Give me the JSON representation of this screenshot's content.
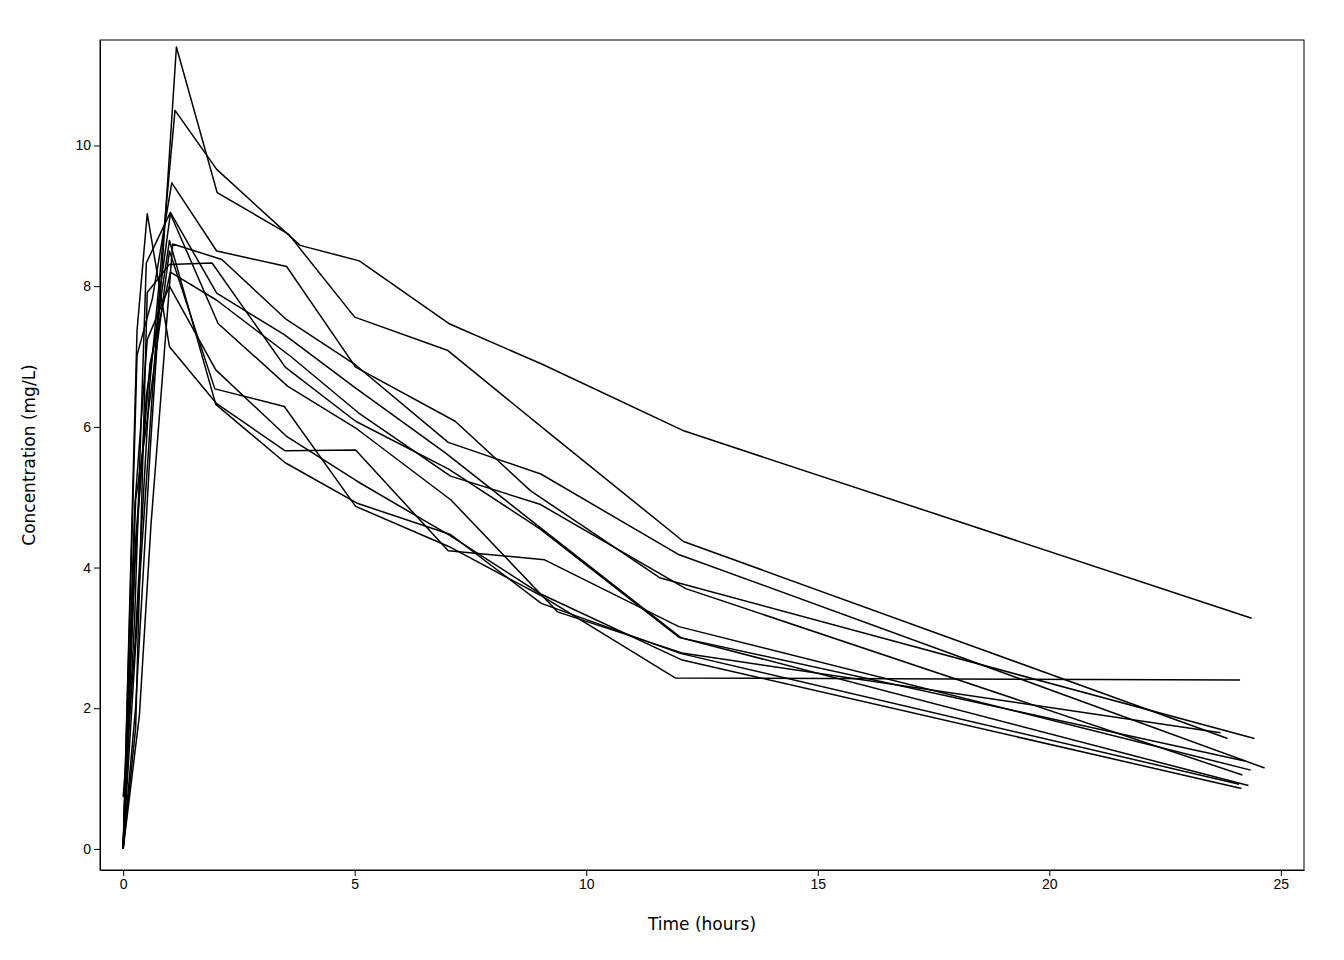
{
  "chart_data": {
    "type": "line",
    "xlabel": "Time (hours)",
    "ylabel": "Concentration (mg/L)",
    "xlim": [
      -0.5,
      25.5
    ],
    "ylim": [
      -0.3,
      11.5
    ],
    "xticks": [
      0,
      5,
      10,
      15,
      20,
      25
    ],
    "yticks": [
      0,
      2,
      4,
      6,
      8,
      10
    ],
    "color": "#000000",
    "grid": false,
    "series": [
      {
        "x": [
          0,
          0.25,
          0.57,
          1.12,
          2.02,
          3.82,
          5.1,
          7.03,
          9.05,
          12.12,
          24.37
        ],
        "values": [
          0.74,
          2.84,
          6.57,
          10.5,
          9.66,
          8.58,
          8.36,
          7.47,
          6.89,
          5.94,
          3.28
        ]
      },
      {
        "x": [
          0,
          0.27,
          0.52,
          1.0,
          1.92,
          3.5,
          5.02,
          7.03,
          9.0,
          12.0,
          24.3
        ],
        "values": [
          0.0,
          1.72,
          7.91,
          8.31,
          8.33,
          6.85,
          6.08,
          5.4,
          4.55,
          3.01,
          0.9
        ]
      },
      {
        "x": [
          0,
          0.27,
          0.58,
          1.02,
          2.02,
          3.62,
          5.08,
          7.07,
          9.0,
          12.15,
          24.17
        ],
        "values": [
          0.0,
          4.4,
          6.9,
          8.2,
          7.8,
          7.0,
          6.2,
          5.3,
          4.9,
          3.7,
          1.05
        ]
      },
      {
        "x": [
          0,
          0.35,
          0.6,
          1.07,
          2.13,
          3.5,
          5.02,
          7.02,
          9.02,
          11.98,
          24.65
        ],
        "values": [
          0.0,
          1.89,
          4.6,
          8.6,
          8.38,
          7.54,
          6.88,
          5.78,
          5.33,
          4.19,
          1.15
        ]
      },
      {
        "x": [
          0,
          0.3,
          0.52,
          1.0,
          2.02,
          3.5,
          5.02,
          7.02,
          9.1,
          12.0,
          24.35
        ],
        "values": [
          0.0,
          7.37,
          9.03,
          7.14,
          6.33,
          5.66,
          5.67,
          4.24,
          4.11,
          3.16,
          1.12
        ]
      },
      {
        "x": [
          0,
          0.27,
          0.58,
          1.15,
          2.03,
          3.57,
          5.0,
          7.0,
          9.22,
          12.1,
          23.85
        ],
        "values": [
          0.0,
          2.02,
          5.63,
          11.4,
          9.33,
          8.74,
          7.56,
          7.09,
          5.9,
          4.37,
          1.57
        ]
      },
      {
        "x": [
          0,
          0.25,
          0.5,
          1.02,
          2.02,
          3.48,
          5.0,
          6.98,
          9.0,
          12.05,
          24.22
        ],
        "values": [
          0.0,
          3.31,
          8.33,
          9.05,
          7.9,
          7.31,
          6.56,
          5.62,
          4.57,
          3.0,
          1.25
        ]
      },
      {
        "x": [
          0,
          0.25,
          0.52,
          1.0,
          2.0,
          3.52,
          5.07,
          7.07,
          9.03,
          12.05,
          24.15
        ],
        "values": [
          0.0,
          4.86,
          7.24,
          8.0,
          6.81,
          5.87,
          5.22,
          4.45,
          3.62,
          2.69,
          0.86
        ]
      },
      {
        "x": [
          0,
          0.3,
          0.63,
          1.05,
          2.02,
          3.53,
          5.02,
          7.17,
          8.8,
          11.6,
          24.43
        ],
        "values": [
          0.0,
          7.02,
          7.82,
          9.47,
          8.5,
          8.28,
          6.85,
          6.08,
          5.09,
          3.85,
          1.57
        ]
      },
      {
        "x": [
          0,
          0.37,
          0.77,
          1.02,
          2.05,
          3.55,
          5.05,
          7.08,
          9.38,
          12.1,
          23.7
        ],
        "values": [
          0.0,
          3.96,
          7.82,
          9.03,
          7.47,
          6.58,
          5.97,
          4.96,
          3.37,
          2.78,
          1.65
        ]
      },
      {
        "x": [
          0,
          0.25,
          0.5,
          1.0,
          2.0,
          3.5,
          5.07,
          7.07,
          9.03,
          12.03,
          24.1
        ],
        "values": [
          0.0,
          4.02,
          6.44,
          8.65,
          6.32,
          5.49,
          4.91,
          4.47,
          3.49,
          2.78,
          0.92
        ]
      },
      {
        "x": [
          0,
          0.27,
          0.52,
          1.0,
          1.98,
          3.48,
          5.02,
          7.03,
          9.0,
          11.92,
          24.12
        ],
        "values": [
          0.0,
          4.96,
          6.1,
          8.5,
          6.54,
          6.29,
          4.87,
          4.3,
          3.61,
          2.43,
          2.4
        ]
      }
    ]
  }
}
